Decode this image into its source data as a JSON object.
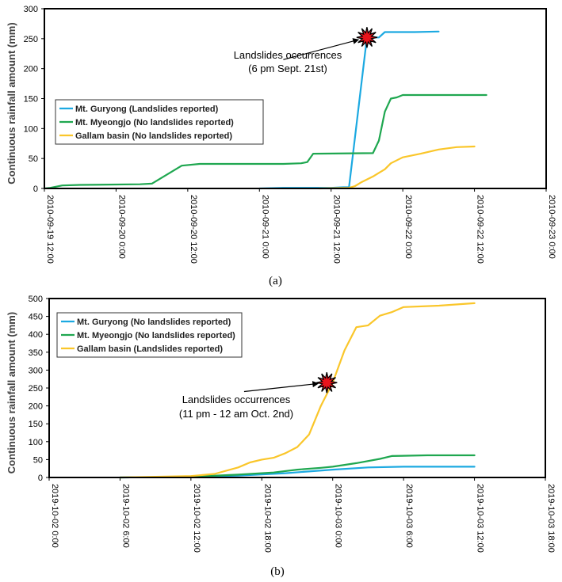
{
  "chart_data": [
    {
      "type": "line",
      "caption": "(a)",
      "ylabel": "Continuous rainfall amount (mm)",
      "xlabel": "",
      "ylim": [
        0,
        300
      ],
      "yticks": [
        0,
        50,
        100,
        150,
        200,
        250,
        300
      ],
      "xlim": [
        "2010-09-19 12:00",
        "2010-09-23 0:00"
      ],
      "xtick_labels": [
        "2010-09-19 12:00",
        "2010-09-20 0:00",
        "2010-09-20 12:00",
        "2010-09-21 0:00",
        "2010-09-21 12:00",
        "2010-09-22 0:00",
        "2010-09-22 12:00",
        "2010-09-23 0:00"
      ],
      "legend_position": "middle-left",
      "series": [
        {
          "name": "Mt. Guryong (Landslides reported)",
          "color": "#1ca9e1",
          "points": [
            [
              "2010-09-21 0:00",
              0
            ],
            [
              "2010-09-21 4:00",
              1
            ],
            [
              "2010-09-21 10:00",
              1
            ],
            [
              "2010-09-21 12:00",
              1
            ],
            [
              "2010-09-21 14:00",
              2
            ],
            [
              "2010-09-21 15:00",
              2
            ],
            [
              "2010-09-21 18:00",
              252
            ],
            [
              "2010-09-21 20:00",
              252
            ],
            [
              "2010-09-21 21:00",
              261
            ],
            [
              "2010-09-22 2:00",
              261
            ],
            [
              "2010-09-22 6:00",
              262
            ]
          ]
        },
        {
          "name": "Mt. Myeongjo (No landslides reported)",
          "color": "#1fa750",
          "points": [
            [
              "2010-09-19 12:00",
              0
            ],
            [
              "2010-09-19 13:00",
              1
            ],
            [
              "2010-09-19 15:00",
              5
            ],
            [
              "2010-09-19 18:00",
              6
            ],
            [
              "2010-09-20 4:00",
              7
            ],
            [
              "2010-09-20 6:00",
              8
            ],
            [
              "2010-09-20 11:00",
              38
            ],
            [
              "2010-09-20 14:00",
              41
            ],
            [
              "2010-09-21 4:00",
              41
            ],
            [
              "2010-09-21 7:00",
              42
            ],
            [
              "2010-09-21 8:00",
              44
            ],
            [
              "2010-09-21 9:00",
              58
            ],
            [
              "2010-09-21 19:00",
              59
            ],
            [
              "2010-09-21 20:00",
              80
            ],
            [
              "2010-09-21 21:00",
              128
            ],
            [
              "2010-09-21 22:00",
              150
            ],
            [
              "2010-09-21 23:00",
              152
            ],
            [
              "2010-09-22 0:00",
              156
            ],
            [
              "2010-09-22 14:00",
              156
            ]
          ]
        },
        {
          "name": "Gallam basin (No landslides reported)",
          "color": "#fac62a",
          "points": [
            [
              "2010-09-21 10:00",
              0
            ],
            [
              "2010-09-21 15:00",
              1
            ],
            [
              "2010-09-21 16:00",
              4
            ],
            [
              "2010-09-21 17:00",
              10
            ],
            [
              "2010-09-21 19:00",
              20
            ],
            [
              "2010-09-21 20:00",
              26
            ],
            [
              "2010-09-21 21:00",
              32
            ],
            [
              "2010-09-21 22:00",
              42
            ],
            [
              "2010-09-22 0:00",
              52
            ],
            [
              "2010-09-22 3:00",
              58
            ],
            [
              "2010-09-22 6:00",
              65
            ],
            [
              "2010-09-22 9:00",
              69
            ],
            [
              "2010-09-22 12:00",
              70
            ]
          ]
        }
      ],
      "annotations": [
        {
          "lines": [
            "Landslides occurrences",
            "(6 pm Sept. 21st)"
          ],
          "point": [
            "2010-09-21 18:00",
            252
          ],
          "anchor_x": "2010-09-21 4:00",
          "anchor_y": 215
        }
      ]
    },
    {
      "type": "line",
      "caption": "(b)",
      "ylabel": "Continuous rainfall amount (mm)",
      "xlabel": "",
      "ylim": [
        0,
        500
      ],
      "yticks": [
        0,
        50,
        100,
        150,
        200,
        250,
        300,
        350,
        400,
        450,
        500
      ],
      "xlim": [
        "2019-10-02 0:00",
        "2019-10-03 18:00"
      ],
      "xtick_labels": [
        "2019-10-02 0:00",
        "2019-10-02 6:00",
        "2019-10-02 12:00",
        "2019-10-02 18:00",
        "2019-10-03 0:00",
        "2019-10-03 6:00",
        "2019-10-03 12:00",
        "2019-10-03 18:00"
      ],
      "legend_position": "top-left",
      "series": [
        {
          "name": "Mt. Guryong (No landslides reported)",
          "color": "#1ca9e1",
          "points": [
            [
              "2019-10-02 6:00",
              0
            ],
            [
              "2019-10-02 12:00",
              2
            ],
            [
              "2019-10-02 16:00",
              5
            ],
            [
              "2019-10-02 20:00",
              12
            ],
            [
              "2019-10-03 0:00",
              22
            ],
            [
              "2019-10-03 3:00",
              28
            ],
            [
              "2019-10-03 6:00",
              30
            ],
            [
              "2019-10-03 12:00",
              30
            ]
          ]
        },
        {
          "name": "Mt. Myeongjo (No landslides reported)",
          "color": "#1fa750",
          "points": [
            [
              "2019-10-02 6:00",
              0
            ],
            [
              "2019-10-02 12:00",
              2
            ],
            [
              "2019-10-02 16:00",
              8
            ],
            [
              "2019-10-02 19:00",
              14
            ],
            [
              "2019-10-02 21:00",
              22
            ],
            [
              "2019-10-02 23:00",
              27
            ],
            [
              "2019-10-03 0:00",
              30
            ],
            [
              "2019-10-03 2:00",
              40
            ],
            [
              "2019-10-03 4:00",
              52
            ],
            [
              "2019-10-03 5:00",
              60
            ],
            [
              "2019-10-03 8:00",
              62
            ],
            [
              "2019-10-03 12:00",
              62
            ]
          ]
        },
        {
          "name": "Gallam basin (Landslides reported)",
          "color": "#fac62a",
          "points": [
            [
              "2019-10-02 6:00",
              0
            ],
            [
              "2019-10-02 12:00",
              4
            ],
            [
              "2019-10-02 14:00",
              10
            ],
            [
              "2019-10-02 16:00",
              28
            ],
            [
              "2019-10-02 17:00",
              42
            ],
            [
              "2019-10-02 18:00",
              50
            ],
            [
              "2019-10-02 19:00",
              55
            ],
            [
              "2019-10-02 20:00",
              68
            ],
            [
              "2019-10-02 21:00",
              85
            ],
            [
              "2019-10-02 22:00",
              120
            ],
            [
              "2019-10-02 23:00",
              200
            ],
            [
              "2019-10-03 0:00",
              265
            ],
            [
              "2019-10-03 1:00",
              355
            ],
            [
              "2019-10-03 2:00",
              420
            ],
            [
              "2019-10-03 3:00",
              425
            ],
            [
              "2019-10-03 4:00",
              452
            ],
            [
              "2019-10-03 5:00",
              462
            ],
            [
              "2019-10-03 6:00",
              476
            ],
            [
              "2019-10-03 9:00",
              480
            ],
            [
              "2019-10-03 12:00",
              487
            ]
          ]
        }
      ],
      "annotations": [
        {
          "lines": [
            "Landslides occurrences",
            "(11 pm - 12 am Oct. 2nd)"
          ],
          "point": [
            "2019-10-02 23:30",
            265
          ],
          "anchor_x": "2019-10-02 16:30",
          "anchor_y": 240
        }
      ]
    }
  ]
}
